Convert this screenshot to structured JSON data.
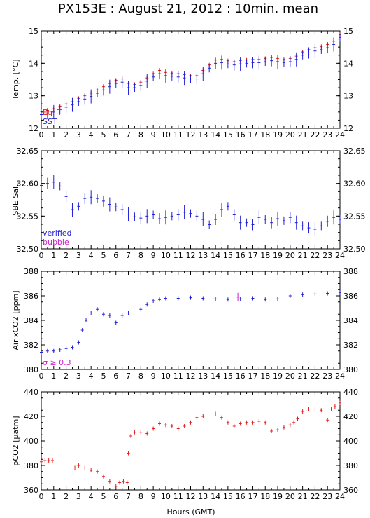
{
  "title": "PX153E : August 21, 2012 : 10min. mean",
  "xlabel": "Hours (GMT)",
  "colors": {
    "blue": "#1f1fd6",
    "red": "#e02020",
    "magenta": "#cc22cc",
    "lightblue": "#7f7fff",
    "axis": "#000000"
  },
  "chart_data": [
    {
      "type": "scatter",
      "ylabel": "Temp. [°C]",
      "ylim": [
        12,
        15
      ],
      "yticks": [
        12,
        13,
        14,
        15
      ],
      "xlim": [
        0,
        24
      ],
      "xticks": [
        0,
        1,
        2,
        3,
        4,
        5,
        6,
        7,
        8,
        9,
        10,
        11,
        12,
        13,
        14,
        15,
        16,
        17,
        18,
        19,
        20,
        21,
        22,
        23,
        24
      ],
      "legend": [
        "Eq. T",
        "SST"
      ],
      "series": [
        {
          "name": "Eq. T",
          "color": "#e02020",
          "style": "cross",
          "points": [
            [
              0,
              12.52
            ],
            [
              0.5,
              12.55
            ],
            [
              1,
              12.6
            ],
            [
              1.5,
              12.68
            ],
            [
              2,
              12.75
            ],
            [
              2.5,
              12.82
            ],
            [
              3,
              12.92
            ],
            [
              3.5,
              13.0
            ],
            [
              4,
              13.08
            ],
            [
              4.5,
              13.18
            ],
            [
              5,
              13.28
            ],
            [
              5.5,
              13.38
            ],
            [
              6,
              13.48
            ],
            [
              6.5,
              13.52
            ],
            [
              7,
              13.38
            ],
            [
              7.5,
              13.35
            ],
            [
              8,
              13.42
            ],
            [
              8.5,
              13.55
            ],
            [
              9,
              13.68
            ],
            [
              9.5,
              13.78
            ],
            [
              10,
              13.72
            ],
            [
              10.5,
              13.7
            ],
            [
              11,
              13.68
            ],
            [
              11.5,
              13.65
            ],
            [
              12,
              13.62
            ],
            [
              12.5,
              13.62
            ],
            [
              13,
              13.78
            ],
            [
              13.5,
              13.95
            ],
            [
              14,
              14.1
            ],
            [
              14.5,
              14.12
            ],
            [
              15,
              14.08
            ],
            [
              15.5,
              14.05
            ],
            [
              16,
              14.08
            ],
            [
              16.5,
              14.1
            ],
            [
              17,
              14.12
            ],
            [
              17.5,
              14.12
            ],
            [
              18,
              14.15
            ],
            [
              18.5,
              14.18
            ],
            [
              19,
              14.15
            ],
            [
              19.5,
              14.12
            ],
            [
              20,
              14.15
            ],
            [
              20.5,
              14.22
            ],
            [
              21,
              14.35
            ],
            [
              21.5,
              14.42
            ],
            [
              22,
              14.48
            ],
            [
              22.5,
              14.52
            ],
            [
              23,
              14.58
            ],
            [
              23.5,
              14.68
            ],
            [
              24,
              14.88
            ]
          ]
        },
        {
          "name": "SST",
          "color": "#1f1fd6",
          "style": "errorbar",
          "points": [
            [
              0,
              12.42
            ],
            [
              0.5,
              12.45
            ],
            [
              1,
              12.5
            ],
            [
              1.5,
              12.58
            ],
            [
              2,
              12.65
            ],
            [
              2.5,
              12.72
            ],
            [
              3,
              12.82
            ],
            [
              3.5,
              12.9
            ],
            [
              4,
              12.98
            ],
            [
              4.5,
              13.08
            ],
            [
              5,
              13.18
            ],
            [
              5.5,
              13.28
            ],
            [
              6,
              13.38
            ],
            [
              6.5,
              13.42
            ],
            [
              7,
              13.25
            ],
            [
              7.5,
              13.25
            ],
            [
              8,
              13.32
            ],
            [
              8.5,
              13.45
            ],
            [
              9,
              13.58
            ],
            [
              9.5,
              13.68
            ],
            [
              10,
              13.62
            ],
            [
              10.5,
              13.6
            ],
            [
              11,
              13.58
            ],
            [
              11.5,
              13.55
            ],
            [
              12,
              13.52
            ],
            [
              12.5,
              13.52
            ],
            [
              13,
              13.68
            ],
            [
              13.5,
              13.85
            ],
            [
              14,
              14.0
            ],
            [
              14.5,
              14.02
            ],
            [
              15,
              13.98
            ],
            [
              15.5,
              13.95
            ],
            [
              16,
              13.98
            ],
            [
              16.5,
              14.0
            ],
            [
              17,
              14.02
            ],
            [
              17.5,
              14.02
            ],
            [
              18,
              14.05
            ],
            [
              18.5,
              14.08
            ],
            [
              19,
              14.05
            ],
            [
              19.5,
              14.02
            ],
            [
              20,
              14.05
            ],
            [
              20.5,
              14.12
            ],
            [
              21,
              14.25
            ],
            [
              21.5,
              14.32
            ],
            [
              22,
              14.38
            ],
            [
              22.5,
              14.42
            ],
            [
              23,
              14.48
            ],
            [
              23.5,
              14.58
            ],
            [
              24,
              14.8
            ]
          ]
        }
      ]
    },
    {
      "type": "scatter",
      "ylabel": "SBE Sal.",
      "ylim": [
        32.5,
        32.65
      ],
      "yticks": [
        32.5,
        32.55,
        32.6,
        32.65
      ],
      "xlim": [
        0,
        24
      ],
      "xticks": [
        0,
        1,
        2,
        3,
        4,
        5,
        6,
        7,
        8,
        9,
        10,
        11,
        12,
        13,
        14,
        15,
        16,
        17,
        18,
        19,
        20,
        21,
        22,
        23,
        24
      ],
      "legend": [
        "verified",
        "bubble"
      ],
      "series": [
        {
          "name": "verified",
          "color": "#1f1fd6",
          "style": "errorbar",
          "points": [
            [
              0,
              32.597
            ],
            [
              0.5,
              32.6
            ],
            [
              1,
              32.602
            ],
            [
              1.5,
              32.596
            ],
            [
              2,
              32.58
            ],
            [
              2.5,
              32.56
            ],
            [
              3,
              32.565
            ],
            [
              3.5,
              32.577
            ],
            [
              4,
              32.579
            ],
            [
              4.5,
              32.577
            ],
            [
              5,
              32.573
            ],
            [
              5.5,
              32.568
            ],
            [
              6,
              32.564
            ],
            [
              6.5,
              32.56
            ],
            [
              7,
              32.553
            ],
            [
              7.5,
              32.549
            ],
            [
              8,
              32.547
            ],
            [
              8.5,
              32.55
            ],
            [
              9,
              32.552
            ],
            [
              9.5,
              32.546
            ],
            [
              10,
              32.548
            ],
            [
              10.5,
              32.55
            ],
            [
              11,
              32.552
            ],
            [
              11.5,
              32.556
            ],
            [
              12,
              32.554
            ],
            [
              12.5,
              32.55
            ],
            [
              13,
              32.545
            ],
            [
              13.5,
              32.537
            ],
            [
              14,
              32.545
            ],
            [
              14.5,
              32.56
            ],
            [
              15,
              32.565
            ],
            [
              15.5,
              32.552
            ],
            [
              16,
              32.54
            ],
            [
              16.5,
              32.54
            ],
            [
              17,
              32.537
            ],
            [
              17.5,
              32.548
            ],
            [
              18,
              32.545
            ],
            [
              18.5,
              32.54
            ],
            [
              19,
              32.546
            ],
            [
              19.5,
              32.543
            ],
            [
              20,
              32.548
            ],
            [
              20.5,
              32.54
            ],
            [
              21,
              32.535
            ],
            [
              21.5,
              32.532
            ],
            [
              22,
              32.53
            ],
            [
              22.5,
              32.535
            ],
            [
              23,
              32.542
            ],
            [
              23.5,
              32.548
            ],
            [
              24,
              32.545
            ]
          ]
        }
      ]
    },
    {
      "type": "scatter",
      "ylabel": "Air xCO2 [ppm]",
      "ylim": [
        380,
        388
      ],
      "yticks": [
        380,
        382,
        384,
        386,
        388
      ],
      "xlim": [
        0,
        24
      ],
      "xticks": [
        0,
        1,
        2,
        3,
        4,
        5,
        6,
        7,
        8,
        9,
        10,
        11,
        12,
        13,
        14,
        15,
        16,
        17,
        18,
        19,
        20,
        21,
        22,
        23,
        24
      ],
      "legend": [
        "σ ≥ 0.3"
      ],
      "series": [
        {
          "name": "Air xCO2",
          "color": "#1f1fd6",
          "style": "cross",
          "points": [
            [
              0,
              381.4
            ],
            [
              0.5,
              381.5
            ],
            [
              1,
              381.5
            ],
            [
              1.5,
              381.6
            ],
            [
              2,
              381.7
            ],
            [
              2.5,
              381.8
            ],
            [
              3,
              382.2
            ],
            [
              3.3,
              383.2
            ],
            [
              3.6,
              384.0
            ],
            [
              4,
              384.6
            ],
            [
              4.5,
              384.9
            ],
            [
              5,
              384.5
            ],
            [
              5.5,
              384.4
            ],
            [
              6,
              383.8
            ],
            [
              6.5,
              384.4
            ],
            [
              7,
              384.6
            ],
            [
              8,
              384.9
            ],
            [
              8.5,
              385.3
            ],
            [
              9,
              385.6
            ],
            [
              9.5,
              385.7
            ],
            [
              10,
              385.8
            ],
            [
              11,
              385.8
            ],
            [
              12,
              385.85
            ],
            [
              13,
              385.8
            ],
            [
              14,
              385.75
            ],
            [
              15,
              385.7
            ],
            [
              16,
              385.75
            ],
            [
              17,
              385.8
            ],
            [
              18,
              385.7
            ],
            [
              19,
              385.75
            ],
            [
              20,
              386.0
            ],
            [
              21,
              386.1
            ],
            [
              22,
              386.15
            ],
            [
              23,
              386.2
            ],
            [
              24,
              386.25
            ]
          ]
        },
        {
          "name": "σ ≥ 0.3",
          "color": "#cc22cc",
          "style": "errorbar",
          "points": [
            [
              15.8,
              385.9
            ]
          ]
        }
      ]
    },
    {
      "type": "scatter",
      "ylabel": "pCO2 [µatm]",
      "ylim": [
        360,
        440
      ],
      "yticks": [
        360,
        380,
        400,
        420,
        440
      ],
      "xlim": [
        0,
        24
      ],
      "xticks": [
        0,
        1,
        2,
        3,
        4,
        5,
        6,
        7,
        8,
        9,
        10,
        11,
        12,
        13,
        14,
        15,
        16,
        17,
        18,
        19,
        20,
        21,
        22,
        23,
        24
      ],
      "legend": [],
      "series": [
        {
          "name": "pCO2",
          "color": "#e02020",
          "style": "cross",
          "points": [
            [
              0,
              383
            ],
            [
              0.3,
              384
            ],
            [
              0.6,
              384
            ],
            [
              0.9,
              384
            ],
            [
              2.7,
              378
            ],
            [
              3,
              380
            ],
            [
              3.5,
              378
            ],
            [
              4,
              376
            ],
            [
              4.5,
              375
            ],
            [
              5,
              371
            ],
            [
              5.5,
              367
            ],
            [
              6,
              363
            ],
            [
              6.3,
              366
            ],
            [
              6.6,
              367
            ],
            [
              6.9,
              366
            ],
            [
              7,
              390
            ],
            [
              7.2,
              404
            ],
            [
              7.5,
              407
            ],
            [
              8,
              407
            ],
            [
              8.5,
              406
            ],
            [
              9,
              410
            ],
            [
              9.5,
              414
            ],
            [
              10,
              413
            ],
            [
              10.5,
              412
            ],
            [
              11,
              410
            ],
            [
              11.5,
              412
            ],
            [
              12,
              415
            ],
            [
              12.5,
              419
            ],
            [
              13,
              420
            ],
            [
              14,
              422
            ],
            [
              14.5,
              419
            ],
            [
              15,
              415
            ],
            [
              15.5,
              412
            ],
            [
              16,
              414
            ],
            [
              16.5,
              415
            ],
            [
              17,
              415
            ],
            [
              17.5,
              416
            ],
            [
              18,
              415
            ],
            [
              18.5,
              408
            ],
            [
              19,
              409
            ],
            [
              19.5,
              411
            ],
            [
              20,
              413
            ],
            [
              20.3,
              415
            ],
            [
              20.6,
              418
            ],
            [
              21,
              424
            ],
            [
              21.5,
              426
            ],
            [
              22,
              426
            ],
            [
              22.5,
              425
            ],
            [
              23,
              417
            ],
            [
              23.3,
              426
            ],
            [
              23.6,
              428
            ],
            [
              24,
              431
            ]
          ]
        }
      ]
    }
  ]
}
